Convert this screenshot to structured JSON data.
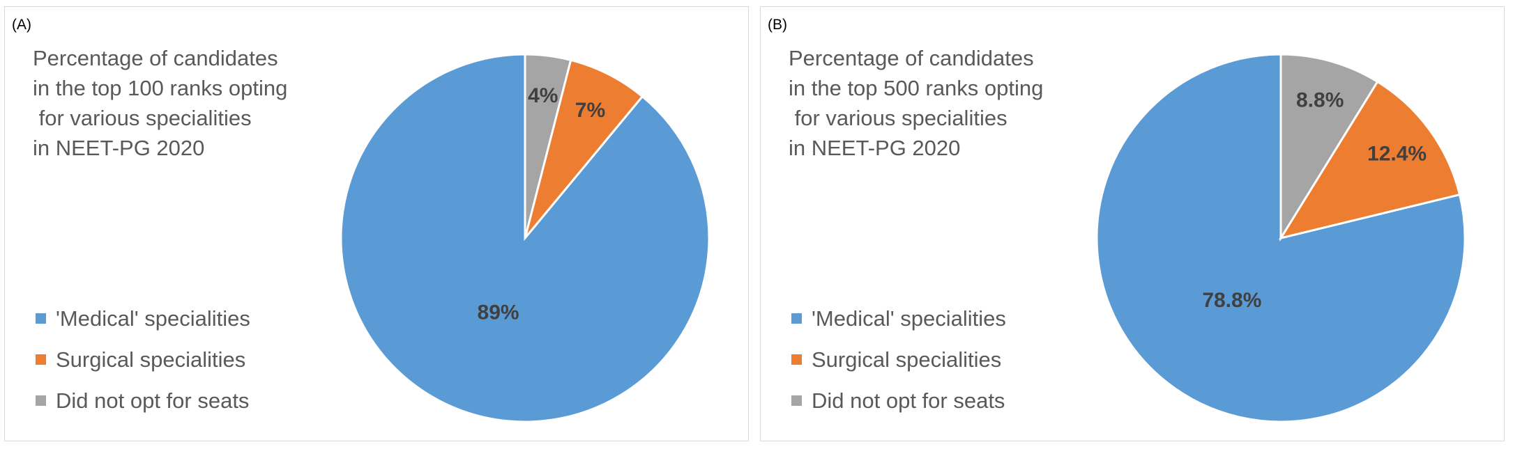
{
  "colors": {
    "medical": "#5b9bd5",
    "surgical": "#ed7d31",
    "not_opted": "#a5a5a5"
  },
  "chart_data": [
    {
      "type": "pie",
      "panel_tag": "(A)",
      "title": "Percentage of candidates\nin the top 100 ranks opting\n for various specialities\nin NEET-PG 2020",
      "legend_position": "left",
      "slices": [
        {
          "name": "'Medical' specialities",
          "value": 89,
          "label": "89%",
          "color": "#5b9bd5"
        },
        {
          "name": "Surgical specialities",
          "value": 7,
          "label": "7%",
          "color": "#ed7d31"
        },
        {
          "name": "Did not opt for seats",
          "value": 4,
          "label": "4%",
          "color": "#a5a5a5"
        }
      ]
    },
    {
      "type": "pie",
      "panel_tag": "(B)",
      "title": "Percentage of candidates\nin the top 500 ranks opting\n for various specialities\nin NEET-PG 2020",
      "legend_position": "left",
      "slices": [
        {
          "name": "'Medical' specialities",
          "value": 78.8,
          "label": "78.8%",
          "color": "#5b9bd5"
        },
        {
          "name": "Surgical specialities",
          "value": 12.4,
          "label": "12.4%",
          "color": "#ed7d31"
        },
        {
          "name": "Did not opt for seats",
          "value": 8.8,
          "label": "8.8%",
          "color": "#a5a5a5"
        }
      ]
    }
  ]
}
